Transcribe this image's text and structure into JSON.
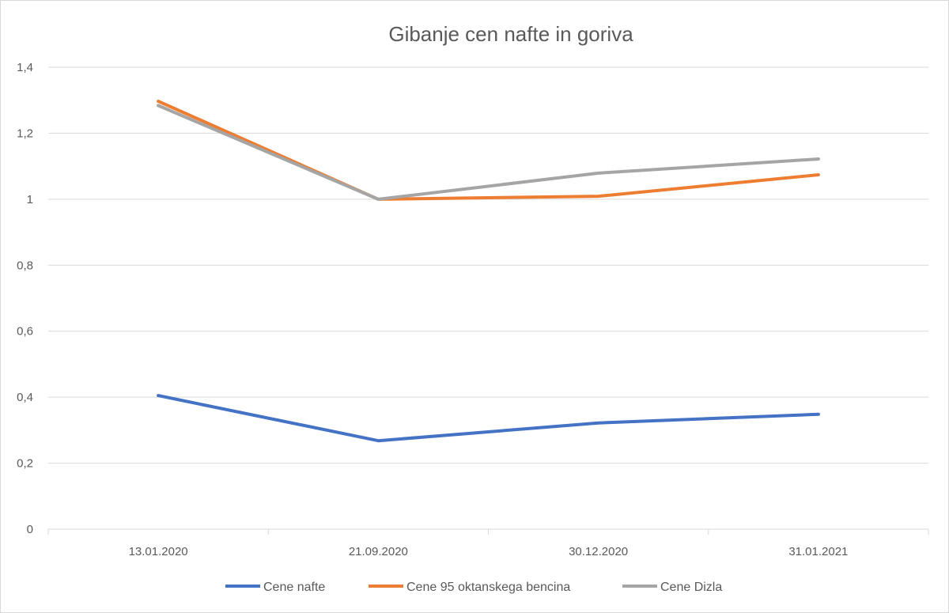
{
  "chart_data": {
    "type": "line",
    "title": "Gibanje cen nafte in goriva",
    "categories": [
      "13.01.2020",
      "21.09.2020",
      "30.12.2020",
      "31.01.2021"
    ],
    "y_ticks": [
      "0",
      "0,2",
      "0,4",
      "0,6",
      "0,8",
      "1",
      "1,2",
      "1,4"
    ],
    "ylim": [
      0,
      1.4
    ],
    "grid": true,
    "legend_position": "bottom",
    "series": [
      {
        "name": "Cene nafte",
        "color": "#4472c4",
        "values": [
          0.405,
          0.268,
          0.322,
          0.348
        ]
      },
      {
        "name": "Cene 95 oktanskega bencina",
        "color": "#ed7d31",
        "values": [
          1.297,
          1.0,
          1.009,
          1.074
        ]
      },
      {
        "name": "Cene Dizla",
        "color": "#a5a5a5",
        "values": [
          1.284,
          1.0,
          1.079,
          1.122
        ]
      }
    ]
  }
}
